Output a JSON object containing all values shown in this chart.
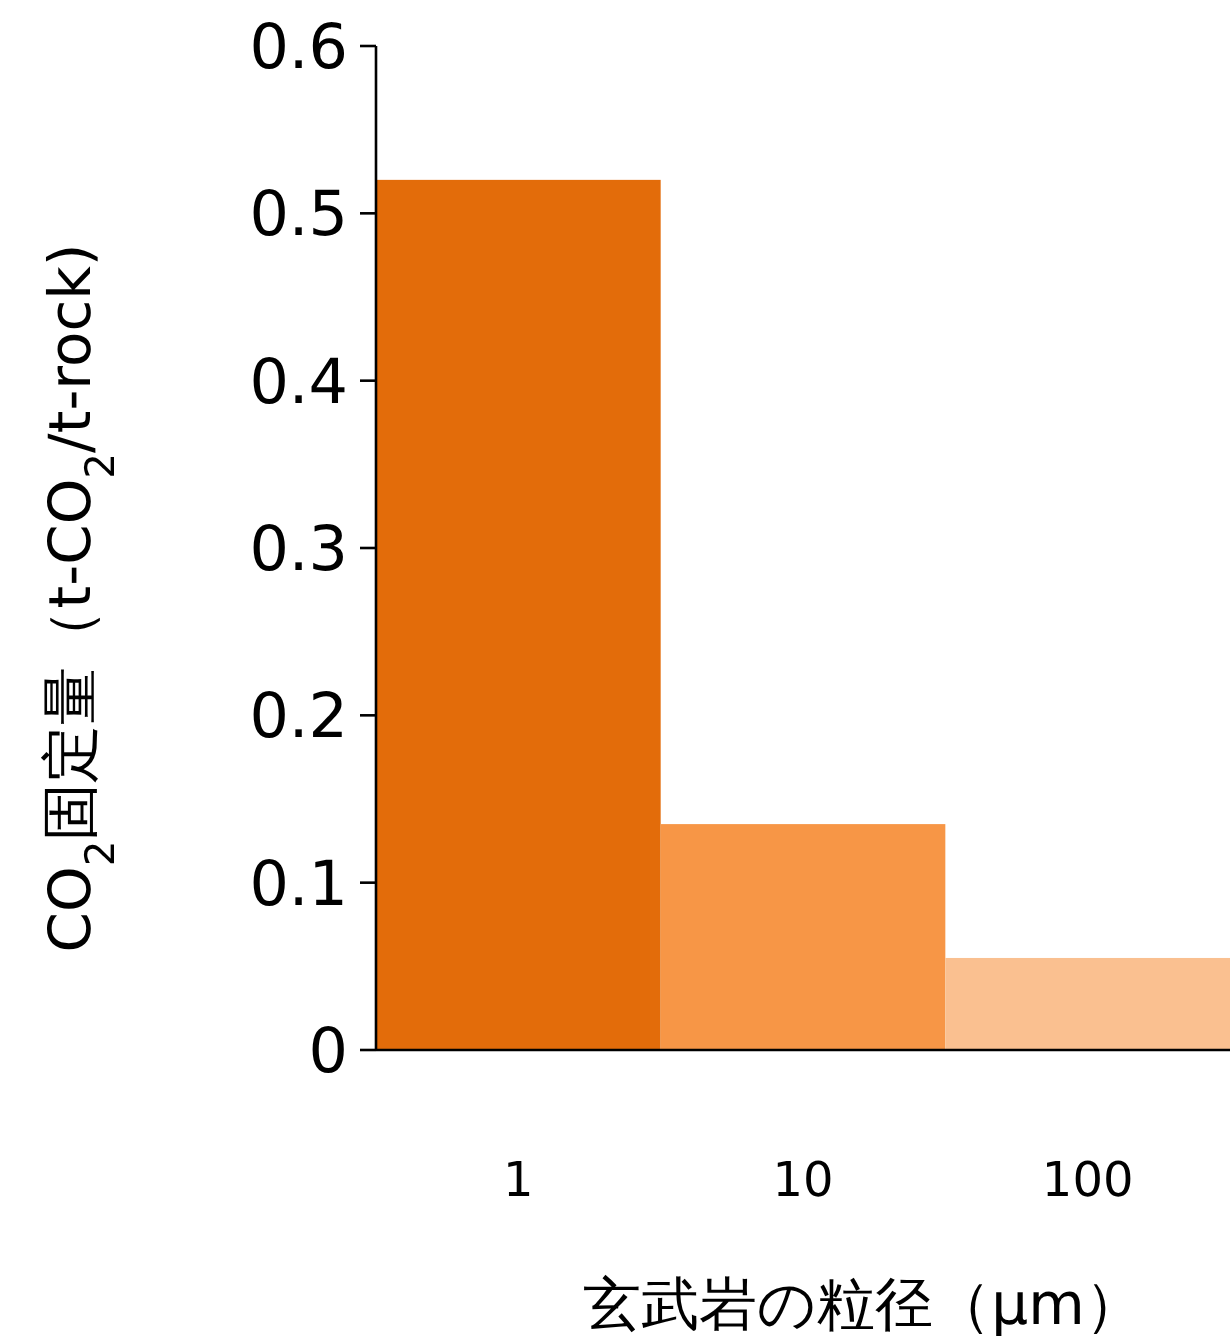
{
  "chart_data": {
    "type": "bar",
    "xlabel": "玄武岩の粒径（μm）",
    "ylabel": "CO$_{2}$固定量（t-CO$_{2}$/t-rock)",
    "categories": [
      "1",
      "10",
      "100"
    ],
    "values": [
      0.52,
      0.135,
      0.055
    ],
    "colors": [
      "#e36c0a",
      "#f79646",
      "#fac090"
    ],
    "ylim": [
      0,
      0.6
    ],
    "yticks": [
      0,
      0.1,
      0.2,
      0.3,
      0.4,
      0.5,
      0.6
    ]
  }
}
